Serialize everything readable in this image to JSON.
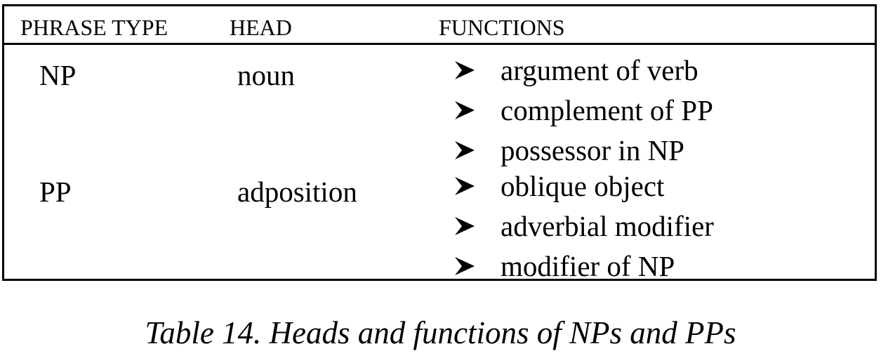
{
  "table": {
    "headers": [
      "PHRASE TYPE",
      "HEAD",
      "FUNCTIONS"
    ],
    "rows": [
      {
        "phrase_type": "NP",
        "head": "noun",
        "functions": [
          "argument of verb",
          "complement of PP",
          "possessor in NP"
        ]
      },
      {
        "phrase_type": "PP",
        "head": "adposition",
        "functions": [
          "oblique object",
          "adverbial modifier",
          "modifier of NP"
        ]
      }
    ],
    "bullet_icon": "arrowhead-bullet-icon"
  },
  "caption": "Table 14. Heads and functions of NPs and PPs"
}
